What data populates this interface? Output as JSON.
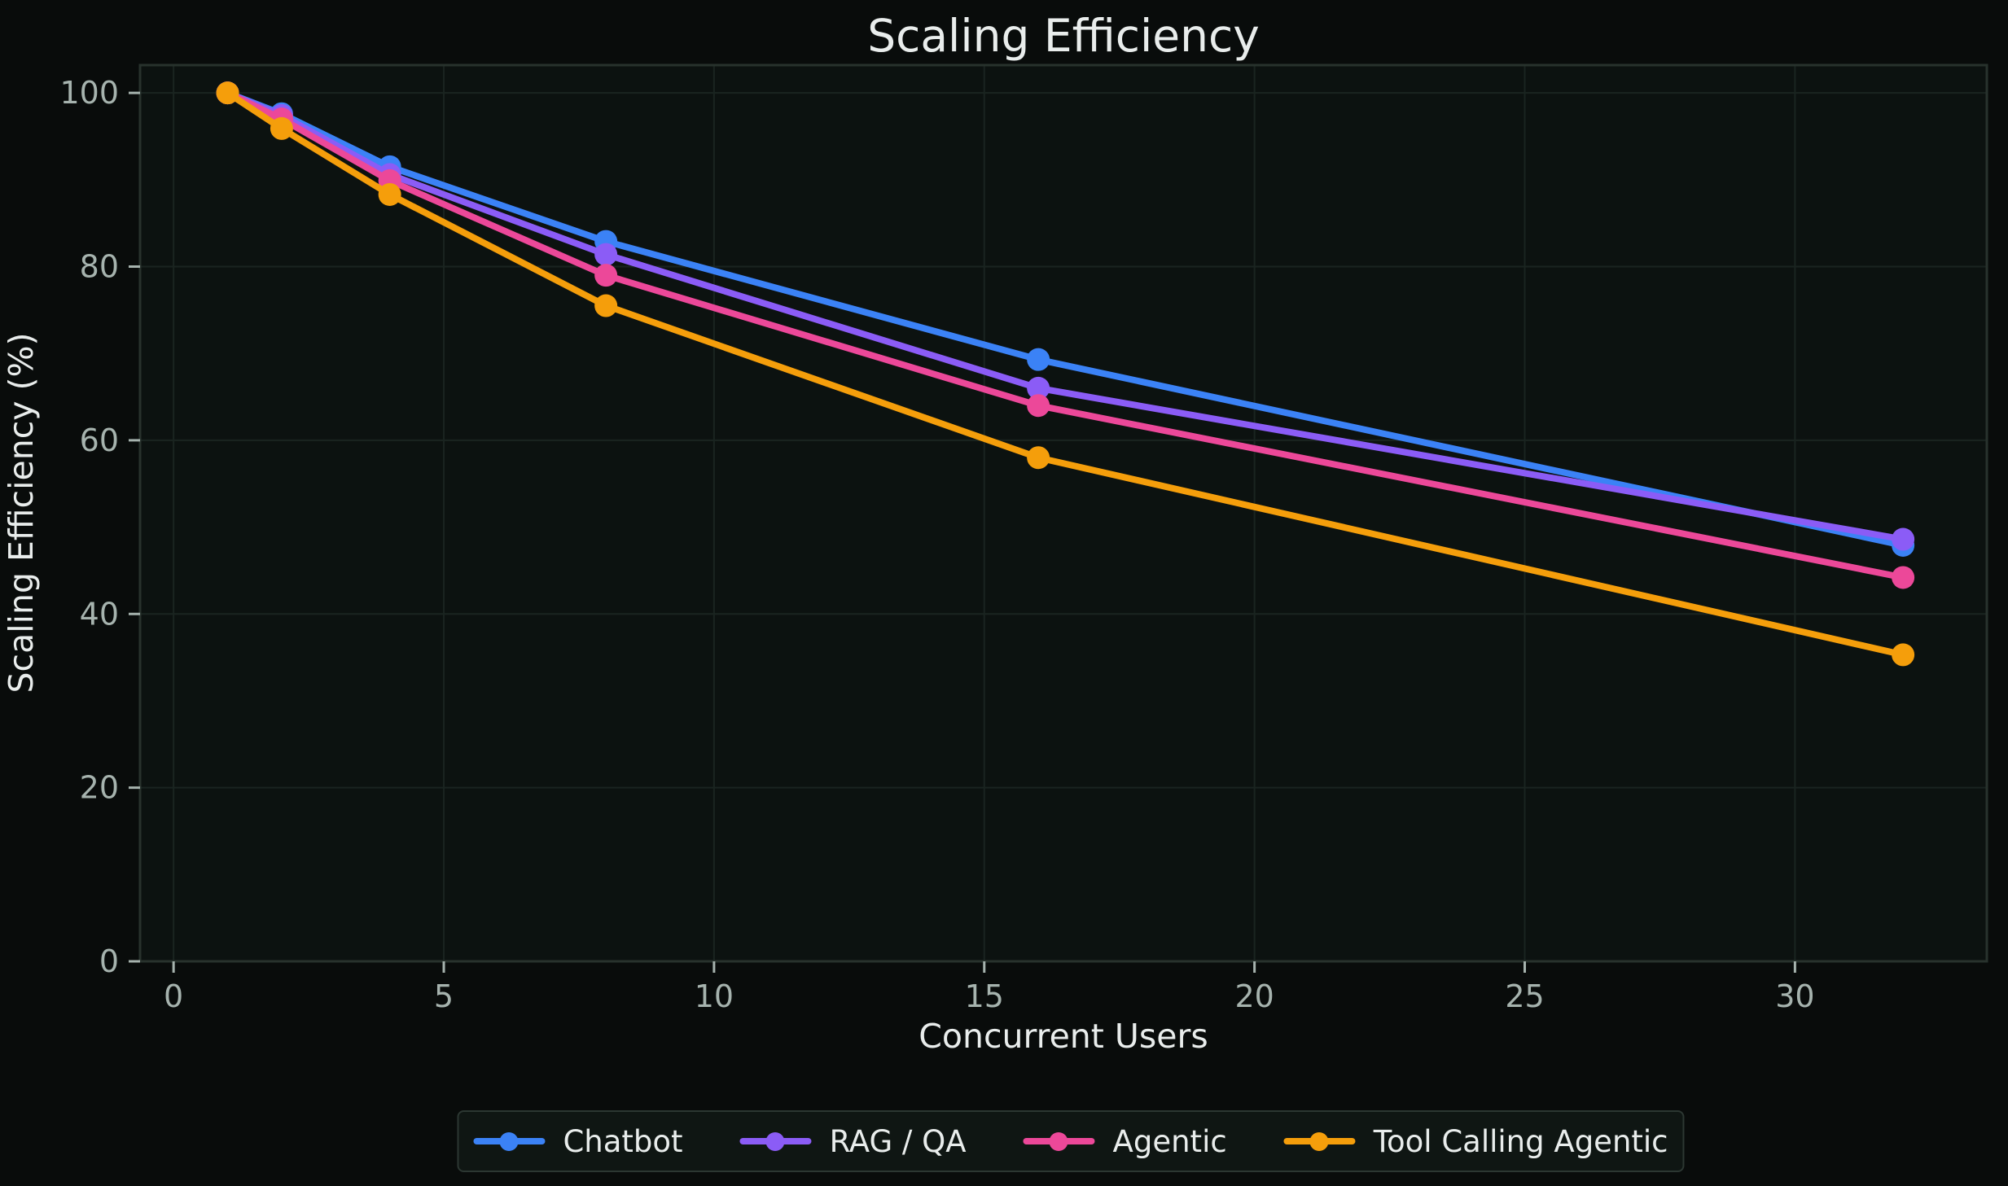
{
  "chart_data": {
    "type": "line",
    "title": "Scaling Efficiency",
    "xlabel": "Concurrent Users",
    "ylabel": "Scaling Efficiency (%)",
    "x": [
      1,
      2,
      4,
      8,
      16,
      32
    ],
    "series": [
      {
        "name": "Chatbot",
        "color": "#3b82f6",
        "values": [
          100,
          97.6,
          91.5,
          82.9,
          69.3,
          47.9
        ]
      },
      {
        "name": "RAG / QA",
        "color": "#8b5cf6",
        "values": [
          100,
          97.4,
          90.6,
          81.4,
          66.0,
          48.6
        ]
      },
      {
        "name": "Agentic",
        "color": "#ec4899",
        "values": [
          100,
          97.0,
          89.9,
          79.0,
          64.0,
          44.2
        ]
      },
      {
        "name": "Tool Calling Agentic",
        "color": "#f59e0b",
        "values": [
          100,
          95.9,
          88.3,
          75.5,
          58.0,
          35.3
        ]
      }
    ],
    "xticks": {
      "values": [
        0,
        5,
        10,
        15,
        20,
        25,
        30
      ],
      "labels": [
        "0",
        "5",
        "10",
        "15",
        "20",
        "25",
        "30"
      ]
    },
    "yticks": {
      "values": [
        0,
        20,
        40,
        60,
        80,
        100
      ],
      "labels": [
        "0",
        "20",
        "40",
        "60",
        "80",
        "100"
      ]
    },
    "xlim": [
      -0.62,
      33.55
    ],
    "ylim": [
      0,
      103.2
    ],
    "grid": true,
    "legend_position": "bottom",
    "theme": {
      "figure_background": "#090c0b",
      "plot_background": "#0c1210",
      "grid_color": "#1a2420",
      "spine_color": "#28322d",
      "tick_color": "#a6b3ae",
      "label_color": "#e9edec",
      "legend_background": "#0f1613",
      "legend_border": "#2c3732"
    }
  }
}
